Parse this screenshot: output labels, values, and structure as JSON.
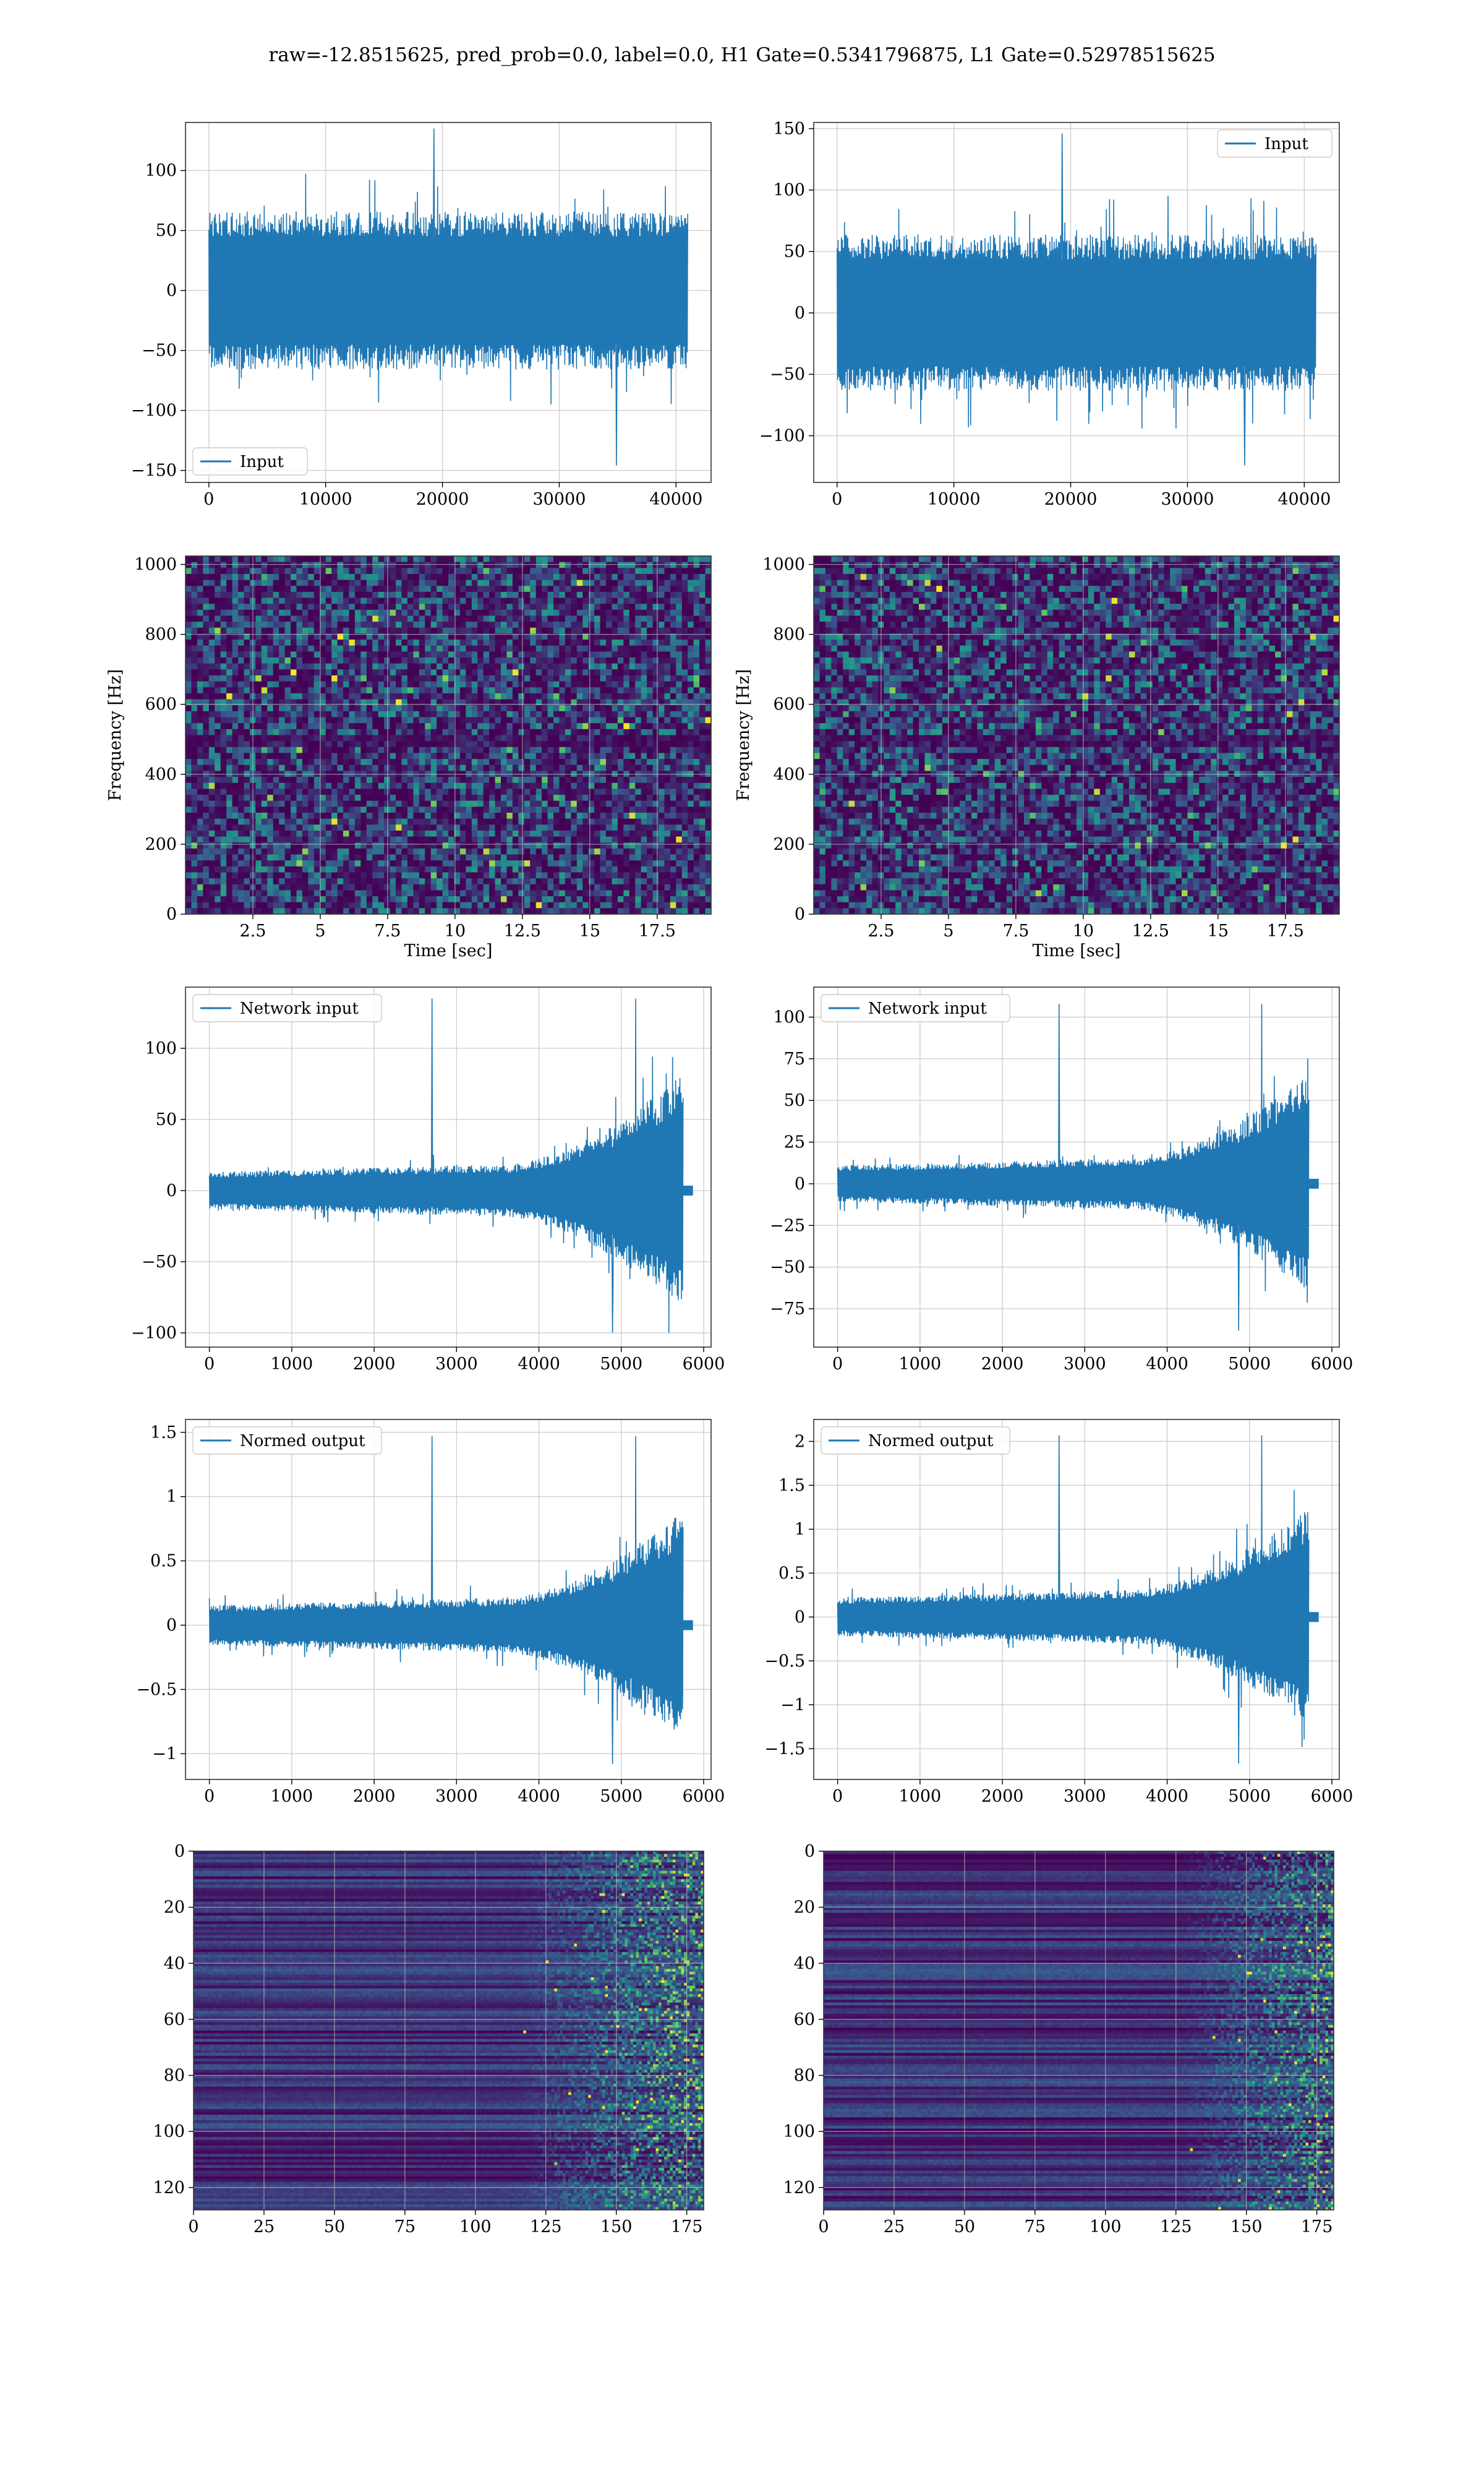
{
  "title": "raw=-12.8515625, pred_prob=0.0, label=0.0, H1 Gate=0.5341796875, L1 Gate=0.52978515625",
  "colors": {
    "line": "#1f77b4",
    "grid": "#d0d0d0",
    "viridis": [
      "#440154",
      "#3b528b",
      "#21918c",
      "#5ec962",
      "#fde725"
    ]
  },
  "chart_data": [
    {
      "type": "line",
      "subplot": "row1-left",
      "series": [
        {
          "name": "Input",
          "kind": "noise",
          "n": 41000,
          "amplitude": 60,
          "peak_max": 135,
          "peak_min": -146
        }
      ],
      "xlim": [
        -2000,
        43000
      ],
      "ylim": [
        -160,
        140
      ],
      "xticks": [
        0,
        10000,
        20000,
        30000,
        40000
      ],
      "yticks": [
        -150,
        -100,
        -50,
        0,
        50,
        100
      ],
      "legend": "lower-left",
      "grid": true
    },
    {
      "type": "line",
      "subplot": "row1-right",
      "series": [
        {
          "name": "Input",
          "kind": "noise",
          "n": 41000,
          "amplitude": 58,
          "peak_max": 146,
          "peak_min": -124
        }
      ],
      "xlim": [
        -2000,
        43000
      ],
      "ylim": [
        -138,
        155
      ],
      "xticks": [
        0,
        10000,
        20000,
        30000,
        40000
      ],
      "yticks": [
        -100,
        -50,
        0,
        50,
        100,
        150
      ],
      "legend": "upper-right",
      "grid": true
    },
    {
      "type": "heatmap",
      "subplot": "row2-left",
      "xlabel": "Time [sec]",
      "ylabel": "Frequency [Hz]",
      "xlim": [
        0,
        19.5
      ],
      "ylim": [
        0,
        1024
      ],
      "xticks": [
        2.5,
        5.0,
        7.5,
        10.0,
        12.5,
        15.0,
        17.5
      ],
      "yticks": [
        0,
        200,
        400,
        600,
        800,
        1000
      ],
      "colormap": "viridis",
      "grid": true
    },
    {
      "type": "heatmap",
      "subplot": "row2-right",
      "xlabel": "Time [sec]",
      "ylabel": "Frequency [Hz]",
      "xlim": [
        0,
        19.5
      ],
      "ylim": [
        0,
        1024
      ],
      "xticks": [
        2.5,
        5.0,
        7.5,
        10.0,
        12.5,
        15.0,
        17.5
      ],
      "yticks": [
        0,
        200,
        400,
        600,
        800,
        1000
      ],
      "colormap": "viridis",
      "grid": true
    },
    {
      "type": "line",
      "subplot": "row3-left",
      "series": [
        {
          "name": "Network input",
          "kind": "chirp",
          "n": 5800,
          "base_amplitude": 12,
          "burst_start": 4500,
          "burst_end": 5750,
          "peak_max": 135,
          "peak_min": -100
        }
      ],
      "xlim": [
        -290,
        6090
      ],
      "ylim": [
        -110,
        143
      ],
      "xticks": [
        0,
        1000,
        2000,
        3000,
        4000,
        5000,
        6000
      ],
      "yticks": [
        -100,
        -50,
        0,
        50,
        100
      ],
      "legend": "upper-left",
      "grid": true
    },
    {
      "type": "line",
      "subplot": "row3-right",
      "series": [
        {
          "name": "Network input",
          "kind": "chirp",
          "n": 5800,
          "base_amplitude": 10,
          "burst_start": 4500,
          "burst_end": 5720,
          "peak_max": 108,
          "peak_min": -88
        }
      ],
      "xlim": [
        -290,
        6090
      ],
      "ylim": [
        -98,
        118
      ],
      "xticks": [
        0,
        1000,
        2000,
        3000,
        4000,
        5000,
        6000
      ],
      "yticks": [
        -75,
        -50,
        -25,
        0,
        25,
        50,
        75,
        100
      ],
      "legend": "upper-left",
      "grid": true
    },
    {
      "type": "line",
      "subplot": "row4-left",
      "series": [
        {
          "name": "Normed output",
          "kind": "chirp",
          "n": 5800,
          "base_amplitude": 0.14,
          "burst_start": 4500,
          "burst_end": 5750,
          "peak_max": 1.47,
          "peak_min": -1.08
        }
      ],
      "xlim": [
        -290,
        6090
      ],
      "ylim": [
        -1.2,
        1.6
      ],
      "xticks": [
        0,
        1000,
        2000,
        3000,
        4000,
        5000,
        6000
      ],
      "yticks": [
        -1.0,
        -0.5,
        0.0,
        0.5,
        1.0,
        1.5
      ],
      "legend": "upper-left",
      "grid": true
    },
    {
      "type": "line",
      "subplot": "row4-right",
      "series": [
        {
          "name": "Normed output",
          "kind": "chirp",
          "n": 5800,
          "base_amplitude": 0.2,
          "burst_start": 4500,
          "burst_end": 5720,
          "peak_max": 2.07,
          "peak_min": -1.67
        }
      ],
      "xlim": [
        -290,
        6090
      ],
      "ylim": [
        -1.85,
        2.25
      ],
      "xticks": [
        0,
        1000,
        2000,
        3000,
        4000,
        5000,
        6000
      ],
      "yticks": [
        -1.5,
        -1.0,
        -0.5,
        0.0,
        0.5,
        1.0,
        1.5,
        2.0
      ],
      "legend": "upper-left",
      "grid": true
    },
    {
      "type": "heatmap",
      "subplot": "row5-left",
      "xlim": [
        0,
        181
      ],
      "ylim": [
        128,
        0
      ],
      "xticks": [
        0,
        25,
        50,
        75,
        100,
        125,
        150,
        175
      ],
      "yticks": [
        0,
        20,
        40,
        60,
        80,
        100,
        120
      ],
      "colormap": "viridis",
      "grid": true,
      "activity_start": 115
    },
    {
      "type": "heatmap",
      "subplot": "row5-right",
      "xlim": [
        0,
        181
      ],
      "ylim": [
        128,
        0
      ],
      "xticks": [
        0,
        25,
        50,
        75,
        100,
        125,
        150,
        175
      ],
      "yticks": [
        0,
        20,
        40,
        60,
        80,
        100,
        120
      ],
      "colormap": "viridis",
      "grid": true,
      "activity_start": 125
    }
  ]
}
